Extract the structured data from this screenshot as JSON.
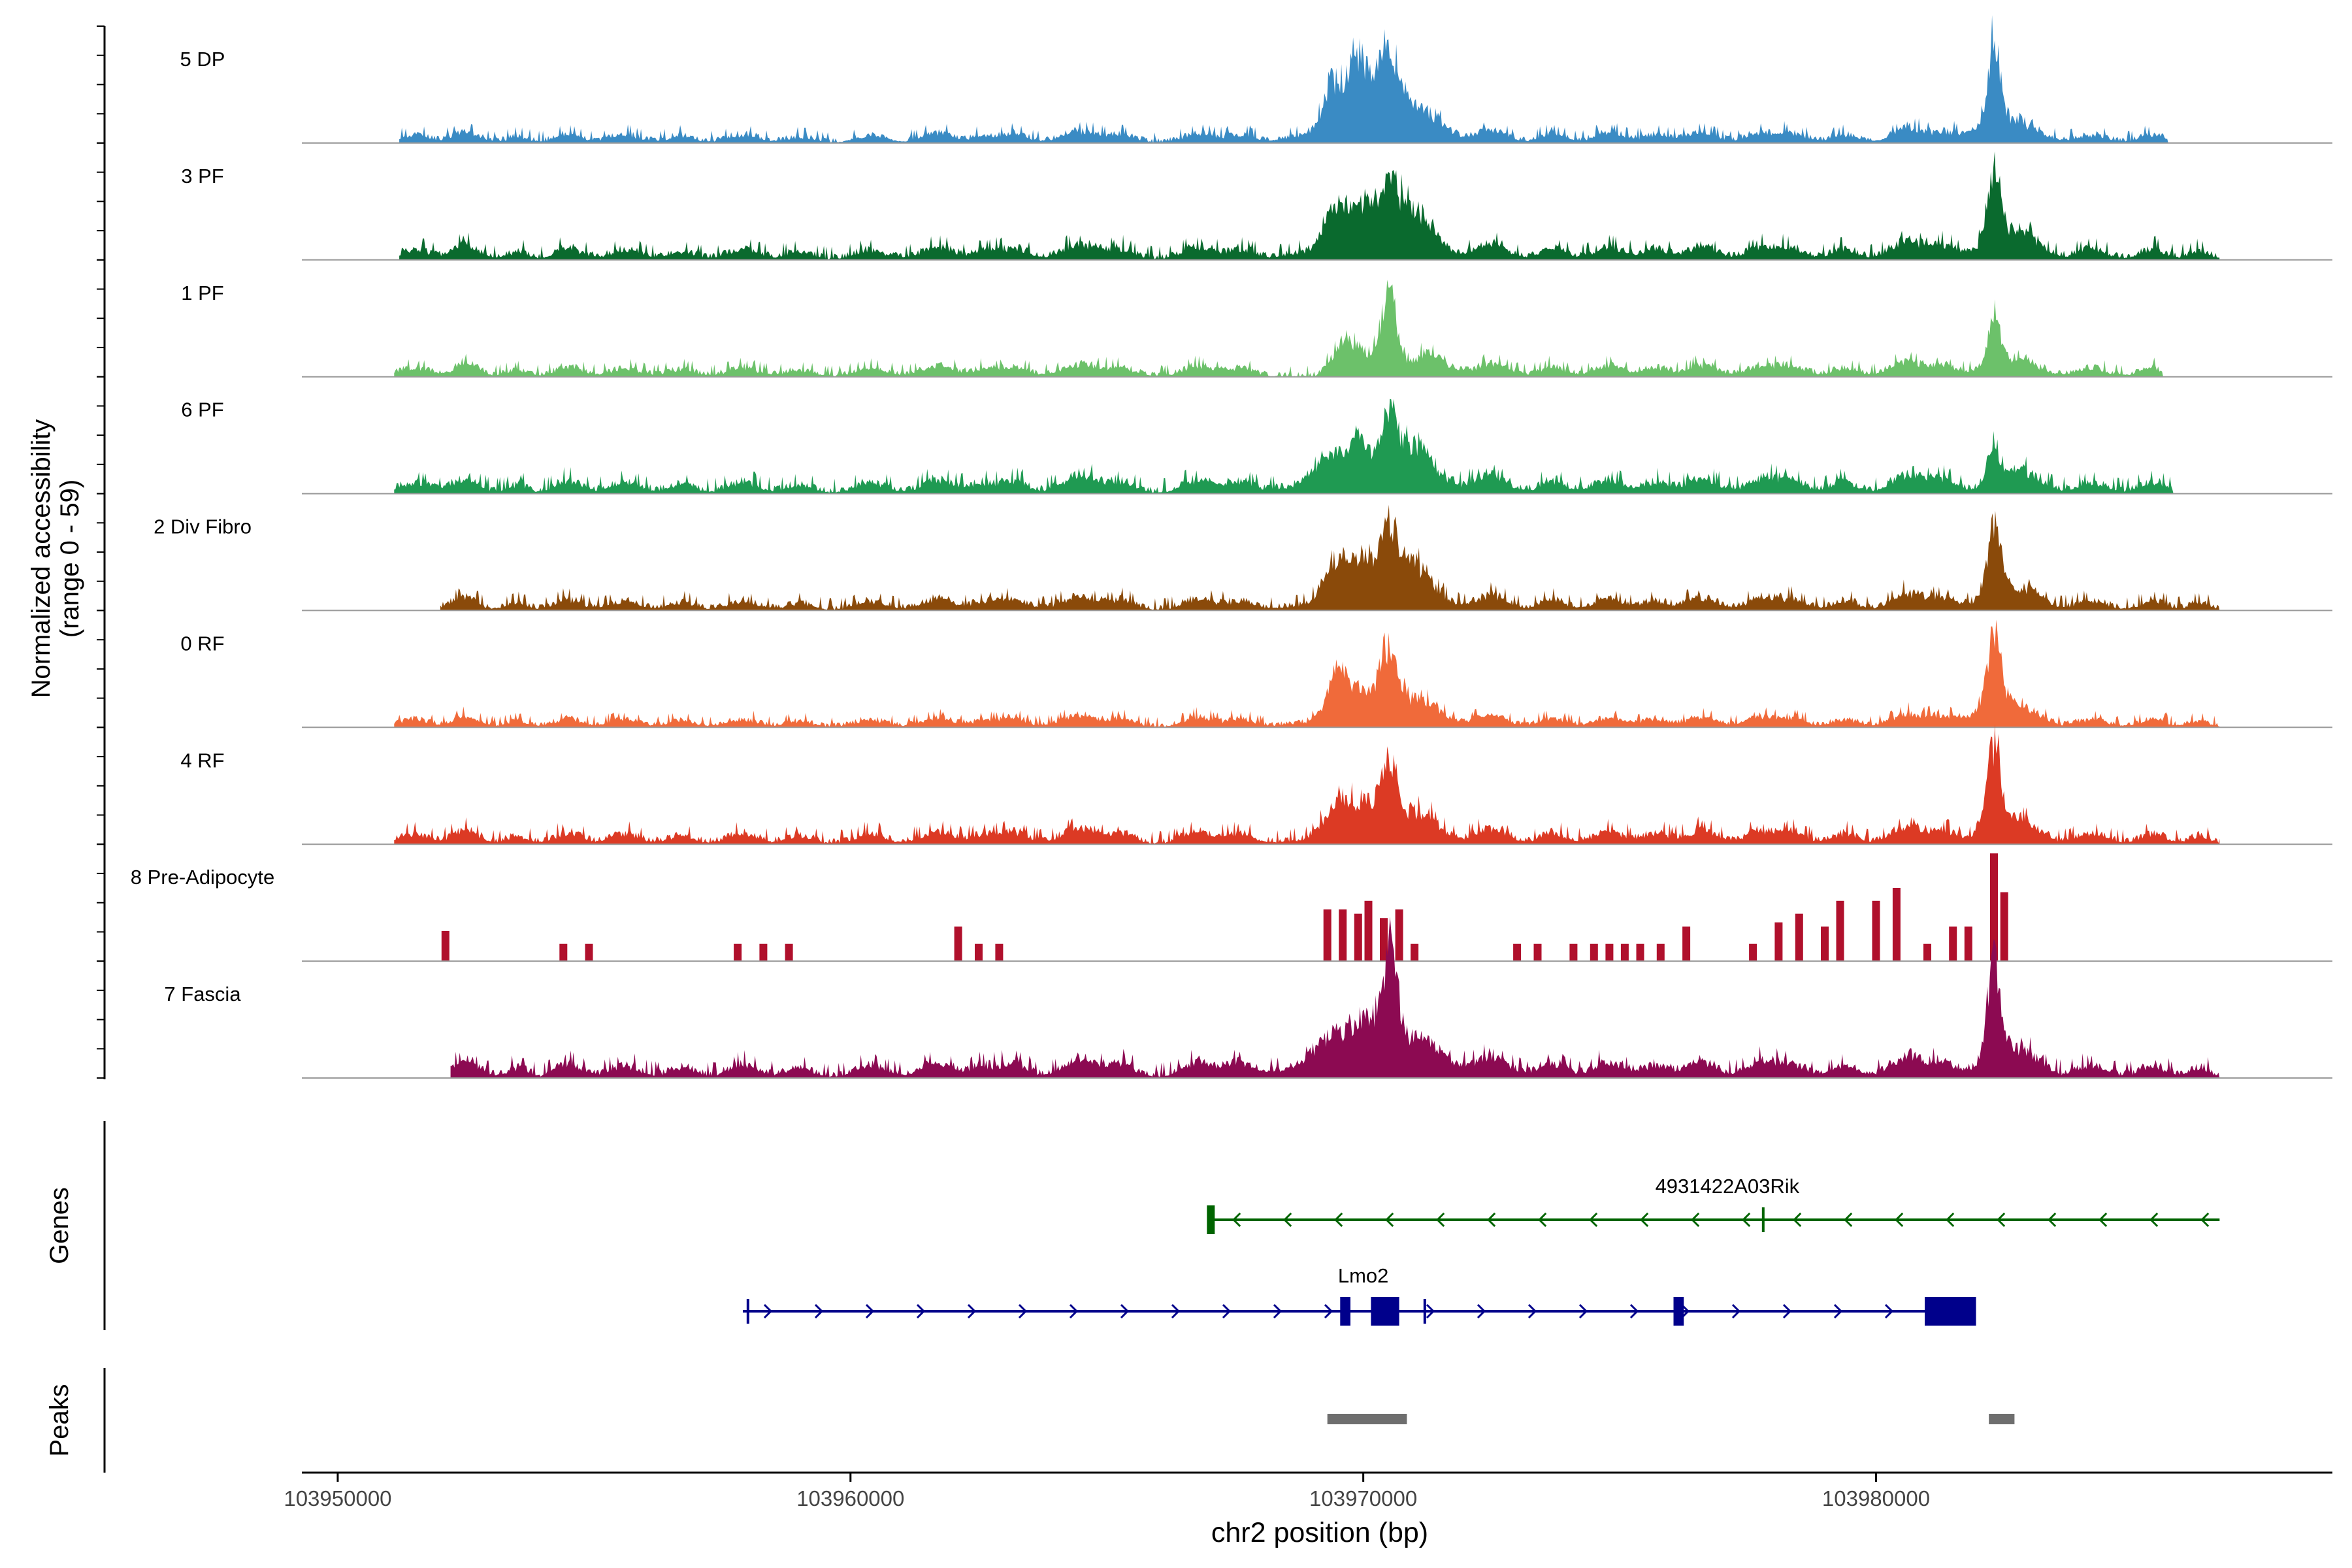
{
  "chart_data": {
    "type": "area",
    "title": "",
    "region": "chr2",
    "xlabel": "chr2 position (bp)",
    "ylabel": "Normalized accessibility",
    "ylabel_range": "(range 0 - 59)",
    "xlim": [
      103949300,
      103988900
    ],
    "ylim": [
      0,
      59
    ],
    "x_ticks": [
      103950000,
      103960000,
      103970000,
      103980000
    ],
    "x_tick_labels": [
      "103950000",
      "103960000",
      "103970000",
      "103980000"
    ],
    "background_peaks": [
      [
        103951500,
        1.5,
        300
      ],
      [
        103952500,
        2.2,
        250
      ],
      [
        103953500,
        1.2,
        200
      ],
      [
        103954500,
        1.8,
        250
      ],
      [
        103955600,
        1.5,
        300
      ],
      [
        103956700,
        1.3,
        250
      ],
      [
        103957900,
        1.6,
        300
      ],
      [
        103959000,
        1.2,
        250
      ],
      [
        103960400,
        1.5,
        300
      ],
      [
        103961700,
        2.0,
        300
      ],
      [
        103962600,
        1.4,
        250
      ],
      [
        103963200,
        1.8,
        250
      ],
      [
        103964500,
        2.5,
        350
      ],
      [
        103965300,
        1.6,
        250
      ],
      [
        103966800,
        2.0,
        300
      ],
      [
        103967600,
        1.5,
        250
      ],
      [
        103971200,
        2.0,
        300
      ],
      [
        103972500,
        2.5,
        300
      ],
      [
        103973700,
        1.8,
        250
      ],
      [
        103974800,
        2.0,
        300
      ],
      [
        103975700,
        1.6,
        250
      ],
      [
        103976600,
        2.2,
        300
      ],
      [
        103977700,
        1.8,
        250
      ],
      [
        103978300,
        2.0,
        300
      ],
      [
        103979400,
        1.6,
        250
      ],
      [
        103980600,
        3.0,
        300
      ],
      [
        103981300,
        2.0,
        250
      ],
      [
        103983000,
        1.8,
        300
      ],
      [
        103984200,
        1.5,
        300
      ],
      [
        103985400,
        1.6,
        250
      ],
      [
        103986300,
        1.3,
        200
      ]
    ],
    "series": [
      {
        "name": "5 DP",
        "color": "#3a8bc4",
        "start": 103951200,
        "end": 103985700,
        "noise": 1.0,
        "bg_scale": 1.0,
        "peaks": [
          [
            103969400,
            10,
            160
          ],
          [
            103969900,
            14,
            180
          ],
          [
            103970500,
            17,
            200
          ],
          [
            103970100,
            6,
            800
          ],
          [
            103971200,
            3,
            400
          ],
          [
            103982300,
            21,
            110
          ],
          [
            103982400,
            4,
            500
          ]
        ]
      },
      {
        "name": "3 PF",
        "color": "#0a6a2e",
        "start": 103951200,
        "end": 103986700,
        "noise": 1.2,
        "bg_scale": 1.3,
        "peaks": [
          [
            103969500,
            9,
            220
          ],
          [
            103970000,
            7,
            200
          ],
          [
            103970500,
            11,
            200
          ],
          [
            103971000,
            5,
            300
          ],
          [
            103970200,
            5,
            900
          ],
          [
            103982300,
            17,
            120
          ],
          [
            103982500,
            5,
            450
          ]
        ]
      },
      {
        "name": "1 PF",
        "color": "#6cc16a",
        "start": 103951100,
        "end": 103985600,
        "noise": 1.0,
        "bg_scale": 1.1,
        "peaks": [
          [
            103969600,
            8,
            200
          ],
          [
            103970000,
            5,
            200
          ],
          [
            103970500,
            18,
            150
          ],
          [
            103971300,
            3,
            400
          ],
          [
            103982300,
            11,
            110
          ],
          [
            103982400,
            3,
            400
          ]
        ]
      },
      {
        "name": "6 PF",
        "color": "#1f9a52",
        "start": 103951100,
        "end": 103985800,
        "noise": 1.3,
        "bg_scale": 1.4,
        "peaks": [
          [
            103969300,
            5,
            300
          ],
          [
            103969900,
            8,
            250
          ],
          [
            103970500,
            13,
            170
          ],
          [
            103971000,
            6,
            300
          ],
          [
            103970200,
            3,
            1200
          ],
          [
            103982300,
            7,
            130
          ],
          [
            103982600,
            3,
            400
          ]
        ]
      },
      {
        "name": "2 Div Fibro",
        "color": "#8a4a0a",
        "start": 103952000,
        "end": 103986700,
        "noise": 1.1,
        "bg_scale": 1.2,
        "peaks": [
          [
            103969500,
            9,
            220
          ],
          [
            103970000,
            7,
            200
          ],
          [
            103970500,
            14,
            200
          ],
          [
            103971000,
            5,
            300
          ],
          [
            103970200,
            4,
            900
          ],
          [
            103982300,
            17,
            120
          ],
          [
            103982500,
            4,
            450
          ]
        ]
      },
      {
        "name": "0 RF",
        "color": "#f06a3a",
        "start": 103951100,
        "end": 103986700,
        "noise": 0.9,
        "bg_scale": 1.0,
        "peaks": [
          [
            103969500,
            10,
            200
          ],
          [
            103970000,
            5,
            250
          ],
          [
            103970500,
            14,
            160
          ],
          [
            103971000,
            3,
            400
          ],
          [
            103970200,
            3,
            900
          ],
          [
            103982300,
            18,
            120
          ],
          [
            103982400,
            5,
            450
          ]
        ]
      },
      {
        "name": "4 RF",
        "color": "#dc3a24",
        "start": 103951100,
        "end": 103986700,
        "noise": 1.2,
        "bg_scale": 1.3,
        "peaks": [
          [
            103969500,
            7,
            250
          ],
          [
            103970000,
            5,
            250
          ],
          [
            103970500,
            15,
            160
          ],
          [
            103971000,
            3,
            350
          ],
          [
            103970200,
            3,
            900
          ],
          [
            103982300,
            19,
            120
          ],
          [
            103982500,
            5,
            400
          ]
        ]
      },
      {
        "name": "8 Pre-Adipocyte",
        "color": "#b0102c",
        "start": 103952000,
        "end": 103982800,
        "noise": 0,
        "bg_scale": 0,
        "bars": [
          [
            103952100,
            7
          ],
          [
            103954400,
            4
          ],
          [
            103954900,
            4
          ],
          [
            103957800,
            4
          ],
          [
            103958300,
            4
          ],
          [
            103958800,
            4
          ],
          [
            103962100,
            8
          ],
          [
            103962500,
            4
          ],
          [
            103962900,
            4
          ],
          [
            103969300,
            12
          ],
          [
            103969600,
            12
          ],
          [
            103969900,
            11
          ],
          [
            103970100,
            14
          ],
          [
            103970400,
            10
          ],
          [
            103970700,
            12
          ],
          [
            103971000,
            4
          ],
          [
            103973000,
            4
          ],
          [
            103973400,
            4
          ],
          [
            103974100,
            4
          ],
          [
            103974500,
            4
          ],
          [
            103974800,
            4
          ],
          [
            103975100,
            4
          ],
          [
            103975400,
            4
          ],
          [
            103975800,
            4
          ],
          [
            103976300,
            8
          ],
          [
            103977600,
            4
          ],
          [
            103978100,
            9
          ],
          [
            103978500,
            11
          ],
          [
            103979000,
            8
          ],
          [
            103979300,
            14
          ],
          [
            103980000,
            14
          ],
          [
            103980400,
            17
          ],
          [
            103981000,
            4
          ],
          [
            103981500,
            8
          ],
          [
            103981800,
            8
          ],
          [
            103982300,
            25
          ],
          [
            103982500,
            16
          ]
        ]
      },
      {
        "name": "7 Fascia",
        "color": "#8c0a52",
        "start": 103952200,
        "end": 103986700,
        "noise": 1.3,
        "bg_scale": 1.6,
        "peaks": [
          [
            103969400,
            7,
            350
          ],
          [
            103970000,
            8,
            250
          ],
          [
            103970500,
            23,
            160
          ],
          [
            103971000,
            4,
            400
          ],
          [
            103970200,
            3,
            1500
          ],
          [
            103982300,
            23,
            120
          ],
          [
            103982500,
            6,
            400
          ]
        ]
      }
    ],
    "genes": [
      {
        "name": "4931422A03Rik",
        "color": "#006400",
        "strand": "-",
        "start": 103967000,
        "end": 103986700,
        "label_at": 103977100,
        "exons": [
          [
            103966950,
            103967100
          ]
        ],
        "ticks": [
          103977800
        ]
      },
      {
        "name": "Lmo2",
        "color": "#00008b",
        "strand": "+",
        "start": 103957900,
        "end": 103981900,
        "label_at": 103970000,
        "exons": [
          [
            103969550,
            103969750
          ],
          [
            103970150,
            103970700
          ],
          [
            103976050,
            103976250
          ],
          [
            103980950,
            103981950
          ]
        ],
        "ticks": [
          103958000,
          103971200
        ]
      }
    ],
    "peak_regions": [
      [
        103969300,
        103970850
      ],
      [
        103982200,
        103982700
      ]
    ],
    "panel_labels": {
      "genes": "Genes",
      "peaks": "Peaks"
    }
  }
}
